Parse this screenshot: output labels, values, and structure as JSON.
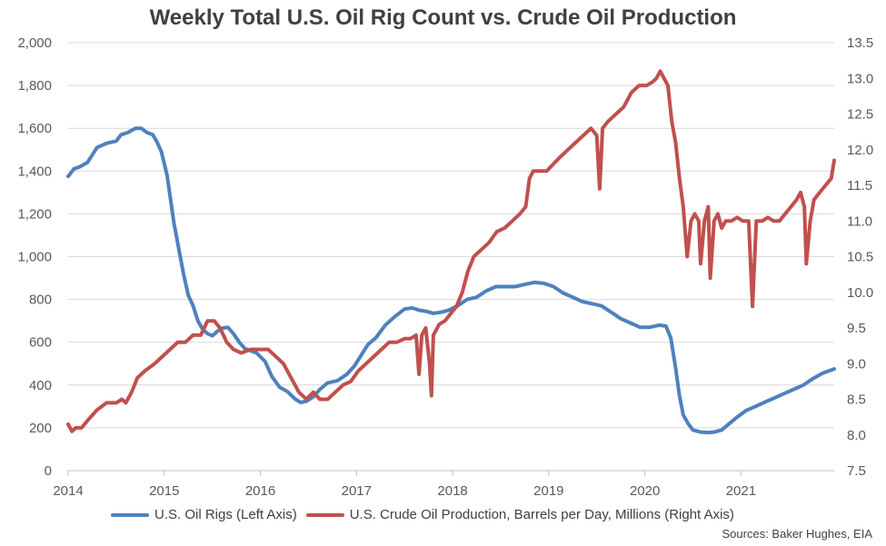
{
  "title": "Weekly Total U.S. Oil Rig Count vs. Crude Oil Production",
  "source": "Sources: Baker Hughes, EIA",
  "chart_data": {
    "type": "line",
    "title": "Weekly Total U.S. Oil Rig Count vs. Crude Oil Production",
    "x_ticks": [
      "2014",
      "2015",
      "2016",
      "2017",
      "2018",
      "2019",
      "2020",
      "2021"
    ],
    "x_range": [
      2014.0,
      2021.97
    ],
    "left_axis": {
      "ticks": [
        "0",
        "200",
        "400",
        "600",
        "800",
        "1,000",
        "1,200",
        "1,400",
        "1,600",
        "1,800",
        "2,000"
      ],
      "range": [
        0,
        2000
      ]
    },
    "right_axis": {
      "ticks": [
        "7.5",
        "8.0",
        "8.5",
        "9.0",
        "9.5",
        "10.0",
        "10.5",
        "11.0",
        "11.5",
        "12.0",
        "12.5",
        "13.0",
        "13.5"
      ],
      "range": [
        7.5,
        13.5
      ]
    },
    "grid": true,
    "legend_position": "bottom",
    "series": [
      {
        "name": "U.S. Oil Rigs (Left Axis)",
        "axis": "left",
        "color": "#4F81BD",
        "points": [
          [
            2014.0,
            1375
          ],
          [
            2014.06,
            1410
          ],
          [
            2014.12,
            1420
          ],
          [
            2014.2,
            1440
          ],
          [
            2014.3,
            1510
          ],
          [
            2014.4,
            1530
          ],
          [
            2014.5,
            1540
          ],
          [
            2014.55,
            1570
          ],
          [
            2014.62,
            1580
          ],
          [
            2014.7,
            1600
          ],
          [
            2014.76,
            1600
          ],
          [
            2014.82,
            1580
          ],
          [
            2014.88,
            1570
          ],
          [
            2014.92,
            1540
          ],
          [
            2014.97,
            1490
          ],
          [
            2015.03,
            1380
          ],
          [
            2015.1,
            1160
          ],
          [
            2015.15,
            1040
          ],
          [
            2015.2,
            920
          ],
          [
            2015.25,
            820
          ],
          [
            2015.3,
            770
          ],
          [
            2015.35,
            700
          ],
          [
            2015.4,
            660
          ],
          [
            2015.45,
            640
          ],
          [
            2015.5,
            630
          ],
          [
            2015.55,
            650
          ],
          [
            2015.6,
            665
          ],
          [
            2015.66,
            670
          ],
          [
            2015.72,
            640
          ],
          [
            2015.78,
            600
          ],
          [
            2015.84,
            570
          ],
          [
            2015.9,
            560
          ],
          [
            2015.96,
            550
          ],
          [
            2016.05,
            510
          ],
          [
            2016.12,
            440
          ],
          [
            2016.2,
            390
          ],
          [
            2016.28,
            370
          ],
          [
            2016.36,
            335
          ],
          [
            2016.42,
            318
          ],
          [
            2016.48,
            325
          ],
          [
            2016.55,
            345
          ],
          [
            2016.62,
            380
          ],
          [
            2016.7,
            410
          ],
          [
            2016.8,
            420
          ],
          [
            2016.9,
            450
          ],
          [
            2016.98,
            490
          ],
          [
            2017.05,
            540
          ],
          [
            2017.12,
            590
          ],
          [
            2017.2,
            620
          ],
          [
            2017.3,
            680
          ],
          [
            2017.4,
            720
          ],
          [
            2017.5,
            755
          ],
          [
            2017.58,
            760
          ],
          [
            2017.65,
            750
          ],
          [
            2017.72,
            745
          ],
          [
            2017.8,
            735
          ],
          [
            2017.88,
            740
          ],
          [
            2017.96,
            750
          ],
          [
            2018.05,
            770
          ],
          [
            2018.15,
            800
          ],
          [
            2018.25,
            810
          ],
          [
            2018.35,
            840
          ],
          [
            2018.45,
            860
          ],
          [
            2018.55,
            860
          ],
          [
            2018.65,
            860
          ],
          [
            2018.75,
            870
          ],
          [
            2018.85,
            880
          ],
          [
            2018.95,
            875
          ],
          [
            2019.05,
            860
          ],
          [
            2019.15,
            830
          ],
          [
            2019.25,
            810
          ],
          [
            2019.35,
            790
          ],
          [
            2019.45,
            780
          ],
          [
            2019.55,
            770
          ],
          [
            2019.65,
            740
          ],
          [
            2019.75,
            710
          ],
          [
            2019.85,
            690
          ],
          [
            2019.95,
            670
          ],
          [
            2020.05,
            670
          ],
          [
            2020.15,
            680
          ],
          [
            2020.22,
            675
          ],
          [
            2020.27,
            620
          ],
          [
            2020.32,
            480
          ],
          [
            2020.36,
            350
          ],
          [
            2020.4,
            260
          ],
          [
            2020.45,
            220
          ],
          [
            2020.5,
            190
          ],
          [
            2020.58,
            180
          ],
          [
            2020.66,
            178
          ],
          [
            2020.72,
            180
          ],
          [
            2020.8,
            190
          ],
          [
            2020.88,
            220
          ],
          [
            2020.96,
            250
          ],
          [
            2021.05,
            280
          ],
          [
            2021.15,
            300
          ],
          [
            2021.25,
            320
          ],
          [
            2021.35,
            340
          ],
          [
            2021.45,
            360
          ],
          [
            2021.55,
            380
          ],
          [
            2021.65,
            400
          ],
          [
            2021.75,
            430
          ],
          [
            2021.85,
            455
          ],
          [
            2021.97,
            475
          ]
        ]
      },
      {
        "name": "U.S. Crude Oil Production, Barrels per Day, Millions (Right Axis)",
        "axis": "right",
        "color": "#C0504D",
        "points": [
          [
            2014.0,
            8.15
          ],
          [
            2014.04,
            8.05
          ],
          [
            2014.08,
            8.1
          ],
          [
            2014.14,
            8.1
          ],
          [
            2014.2,
            8.2
          ],
          [
            2014.3,
            8.35
          ],
          [
            2014.4,
            8.45
          ],
          [
            2014.5,
            8.45
          ],
          [
            2014.56,
            8.5
          ],
          [
            2014.6,
            8.45
          ],
          [
            2014.66,
            8.6
          ],
          [
            2014.72,
            8.8
          ],
          [
            2014.8,
            8.9
          ],
          [
            2014.9,
            9.0
          ],
          [
            2014.98,
            9.1
          ],
          [
            2015.06,
            9.2
          ],
          [
            2015.14,
            9.3
          ],
          [
            2015.22,
            9.3
          ],
          [
            2015.3,
            9.4
          ],
          [
            2015.38,
            9.4
          ],
          [
            2015.45,
            9.6
          ],
          [
            2015.52,
            9.6
          ],
          [
            2015.58,
            9.5
          ],
          [
            2015.65,
            9.3
          ],
          [
            2015.72,
            9.2
          ],
          [
            2015.8,
            9.15
          ],
          [
            2015.9,
            9.2
          ],
          [
            2016.0,
            9.2
          ],
          [
            2016.08,
            9.2
          ],
          [
            2016.16,
            9.1
          ],
          [
            2016.24,
            9.0
          ],
          [
            2016.32,
            8.8
          ],
          [
            2016.4,
            8.6
          ],
          [
            2016.48,
            8.5
          ],
          [
            2016.55,
            8.6
          ],
          [
            2016.62,
            8.5
          ],
          [
            2016.7,
            8.5
          ],
          [
            2016.78,
            8.6
          ],
          [
            2016.86,
            8.7
          ],
          [
            2016.94,
            8.75
          ],
          [
            2017.02,
            8.9
          ],
          [
            2017.1,
            9.0
          ],
          [
            2017.18,
            9.1
          ],
          [
            2017.26,
            9.2
          ],
          [
            2017.34,
            9.3
          ],
          [
            2017.42,
            9.3
          ],
          [
            2017.5,
            9.35
          ],
          [
            2017.56,
            9.35
          ],
          [
            2017.62,
            9.4
          ],
          [
            2017.65,
            8.85
          ],
          [
            2017.68,
            9.4
          ],
          [
            2017.72,
            9.5
          ],
          [
            2017.76,
            9.0
          ],
          [
            2017.78,
            8.55
          ],
          [
            2017.8,
            9.4
          ],
          [
            2017.86,
            9.55
          ],
          [
            2017.92,
            9.6
          ],
          [
            2017.98,
            9.7
          ],
          [
            2018.04,
            9.8
          ],
          [
            2018.1,
            10.0
          ],
          [
            2018.16,
            10.3
          ],
          [
            2018.22,
            10.5
          ],
          [
            2018.3,
            10.6
          ],
          [
            2018.38,
            10.7
          ],
          [
            2018.46,
            10.85
          ],
          [
            2018.54,
            10.9
          ],
          [
            2018.62,
            11.0
          ],
          [
            2018.7,
            11.1
          ],
          [
            2018.76,
            11.2
          ],
          [
            2018.8,
            11.6
          ],
          [
            2018.84,
            11.7
          ],
          [
            2018.92,
            11.7
          ],
          [
            2018.98,
            11.7
          ],
          [
            2019.05,
            11.8
          ],
          [
            2019.12,
            11.9
          ],
          [
            2019.2,
            12.0
          ],
          [
            2019.28,
            12.1
          ],
          [
            2019.36,
            12.2
          ],
          [
            2019.44,
            12.3
          ],
          [
            2019.5,
            12.2
          ],
          [
            2019.53,
            11.45
          ],
          [
            2019.56,
            12.3
          ],
          [
            2019.62,
            12.4
          ],
          [
            2019.7,
            12.5
          ],
          [
            2019.78,
            12.6
          ],
          [
            2019.86,
            12.8
          ],
          [
            2019.94,
            12.9
          ],
          [
            2020.02,
            12.9
          ],
          [
            2020.08,
            12.95
          ],
          [
            2020.12,
            13.0
          ],
          [
            2020.16,
            13.1
          ],
          [
            2020.2,
            13.0
          ],
          [
            2020.24,
            12.9
          ],
          [
            2020.28,
            12.4
          ],
          [
            2020.32,
            12.1
          ],
          [
            2020.36,
            11.6
          ],
          [
            2020.4,
            11.2
          ],
          [
            2020.44,
            10.5
          ],
          [
            2020.48,
            11.0
          ],
          [
            2020.52,
            11.1
          ],
          [
            2020.56,
            11.0
          ],
          [
            2020.58,
            10.4
          ],
          [
            2020.62,
            11.0
          ],
          [
            2020.66,
            11.2
          ],
          [
            2020.68,
            10.2
          ],
          [
            2020.72,
            11.0
          ],
          [
            2020.76,
            11.1
          ],
          [
            2020.8,
            10.9
          ],
          [
            2020.84,
            11.0
          ],
          [
            2020.9,
            11.0
          ],
          [
            2020.96,
            11.05
          ],
          [
            2021.02,
            11.0
          ],
          [
            2021.08,
            11.0
          ],
          [
            2021.12,
            9.8
          ],
          [
            2021.16,
            11.0
          ],
          [
            2021.22,
            11.0
          ],
          [
            2021.28,
            11.05
          ],
          [
            2021.34,
            11.0
          ],
          [
            2021.4,
            11.0
          ],
          [
            2021.46,
            11.1
          ],
          [
            2021.52,
            11.2
          ],
          [
            2021.58,
            11.3
          ],
          [
            2021.62,
            11.4
          ],
          [
            2021.66,
            11.2
          ],
          [
            2021.68,
            10.4
          ],
          [
            2021.72,
            11.0
          ],
          [
            2021.76,
            11.3
          ],
          [
            2021.82,
            11.4
          ],
          [
            2021.88,
            11.5
          ],
          [
            2021.94,
            11.6
          ],
          [
            2021.97,
            11.85
          ]
        ]
      }
    ]
  }
}
